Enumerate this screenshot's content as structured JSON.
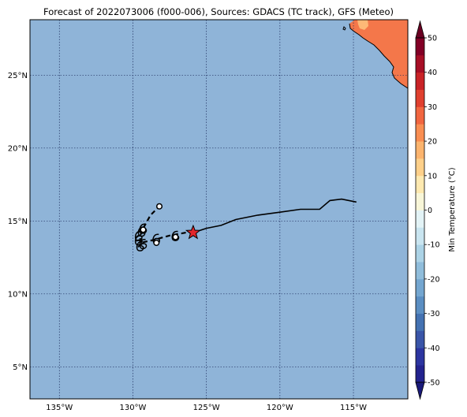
{
  "title": "Forecast of 2022073006 (f000-006), Sources: GDACS (TC track), GFS (Meteo)",
  "colors": {
    "ocean": "#8fb4d8",
    "land_warm": "#f4774a",
    "land_hot": "#fdb877",
    "grid": "#1f2f5f",
    "track": "#000000",
    "star": "#e3262b"
  },
  "map": {
    "lon_range": [
      -137,
      -111.3
    ],
    "lat_range": [
      2.8,
      28.8
    ],
    "lon_ticks": [
      {
        "value": -135,
        "label": "135°W"
      },
      {
        "value": -130,
        "label": "130°W"
      },
      {
        "value": -125,
        "label": "125°W"
      },
      {
        "value": -120,
        "label": "120°W"
      },
      {
        "value": -115,
        "label": "115°W"
      }
    ],
    "lat_ticks": [
      {
        "value": 5,
        "label": "5°N"
      },
      {
        "value": 10,
        "label": "10°N"
      },
      {
        "value": 15,
        "label": "15°N"
      },
      {
        "value": 20,
        "label": "20°N"
      },
      {
        "value": 25,
        "label": "25°N"
      }
    ],
    "track_line": [
      [
        -114.8,
        16.3
      ],
      [
        -115.8,
        16.5
      ],
      [
        -116.6,
        16.4
      ],
      [
        -117.3,
        15.8
      ],
      [
        -118.6,
        15.8
      ],
      [
        -120.0,
        15.6
      ],
      [
        -121.5,
        15.4
      ],
      [
        -123.0,
        15.1
      ],
      [
        -124.0,
        14.7
      ],
      [
        -125.0,
        14.5
      ],
      [
        -125.9,
        14.2
      ]
    ],
    "current_position": [
      -125.9,
      14.2
    ],
    "forecast_track": [
      [
        -126.4,
        14.2
      ],
      [
        -127.5,
        14.0
      ],
      [
        -128.6,
        13.7
      ],
      [
        -129.5,
        13.5
      ]
    ],
    "forecast_branch": [
      [
        -129.5,
        13.5
      ],
      [
        -129.5,
        14.0
      ],
      [
        -129.3,
        14.5
      ],
      [
        -128.8,
        15.4
      ],
      [
        -128.2,
        16.0
      ]
    ],
    "storm_symbols": [
      [
        -127.1,
        13.9
      ],
      [
        -128.4,
        13.7
      ],
      [
        -129.3,
        13.35
      ],
      [
        -129.5,
        13.2
      ],
      [
        -129.6,
        13.6
      ],
      [
        -129.6,
        13.9
      ],
      [
        -129.4,
        14.2
      ],
      [
        -129.3,
        14.4
      ]
    ],
    "open_circles": [
      [
        -127.1,
        13.9
      ],
      [
        -128.4,
        13.5
      ],
      [
        -129.3,
        14.4
      ],
      [
        -128.2,
        16.0
      ]
    ]
  },
  "colorbar": {
    "label": "Min Temperature (°C)",
    "ticks": [
      -50,
      -40,
      -30,
      -20,
      -10,
      0,
      10,
      20,
      30,
      40,
      50
    ],
    "bands": [
      {
        "from": -50,
        "to": -45,
        "color": "#23238e"
      },
      {
        "from": -45,
        "to": -40,
        "color": "#2c35a0"
      },
      {
        "from": -40,
        "to": -35,
        "color": "#3a55a8"
      },
      {
        "from": -35,
        "to": -30,
        "color": "#4472b2"
      },
      {
        "from": -30,
        "to": -25,
        "color": "#5b8ec2"
      },
      {
        "from": -25,
        "to": -20,
        "color": "#74a6d0"
      },
      {
        "from": -20,
        "to": -15,
        "color": "#90bddb"
      },
      {
        "from": -15,
        "to": -10,
        "color": "#acd3e6"
      },
      {
        "from": -10,
        "to": -5,
        "color": "#c9e5f0"
      },
      {
        "from": -5,
        "to": 0,
        "color": "#e3f3f6"
      },
      {
        "from": 0,
        "to": 5,
        "color": "#f8f6d8"
      },
      {
        "from": 5,
        "to": 10,
        "color": "#fee9b0"
      },
      {
        "from": 10,
        "to": 15,
        "color": "#fed08a"
      },
      {
        "from": 15,
        "to": 20,
        "color": "#fcb46e"
      },
      {
        "from": 20,
        "to": 25,
        "color": "#f98e52"
      },
      {
        "from": 25,
        "to": 30,
        "color": "#f16640"
      },
      {
        "from": 30,
        "to": 35,
        "color": "#e0402f"
      },
      {
        "from": 35,
        "to": 40,
        "color": "#c92327"
      },
      {
        "from": 40,
        "to": 45,
        "color": "#a70f26"
      },
      {
        "from": 45,
        "to": 50,
        "color": "#820026"
      }
    ],
    "under_color": "#1a1a7a",
    "over_color": "#6a0022"
  }
}
